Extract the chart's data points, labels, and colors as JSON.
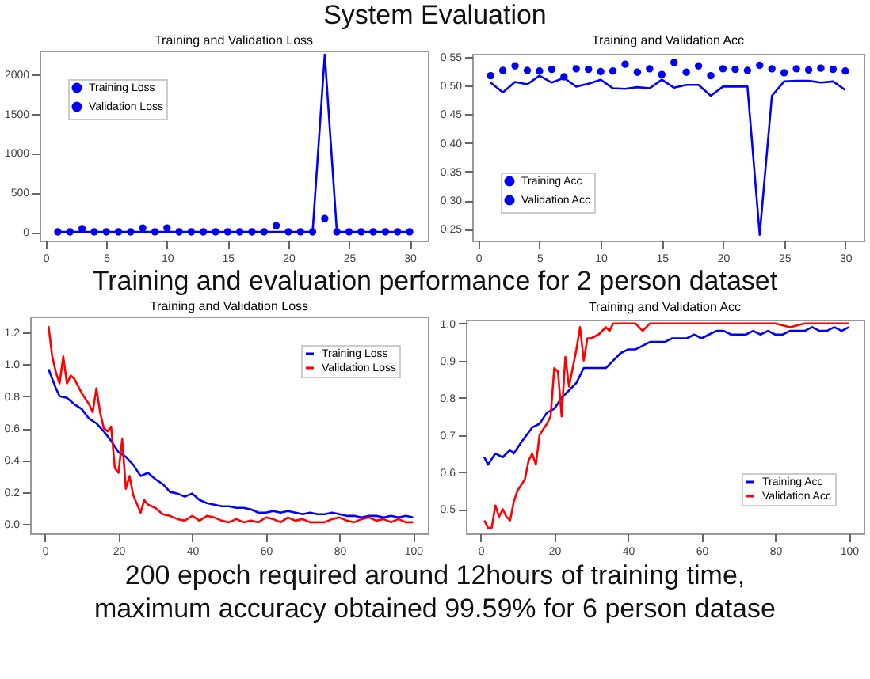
{
  "chart_data": [
    {
      "type": "line",
      "title": "Training and Validation Loss",
      "annotations": [
        "System Evaluation"
      ],
      "legend": "top left",
      "xlim": [
        -0.5,
        31.5
      ],
      "xticks": [
        0,
        5,
        10,
        15,
        20,
        25,
        30
      ],
      "ylim": [
        -110,
        2300
      ],
      "yticks": [
        0,
        500,
        1000,
        1500,
        2000
      ],
      "series": [
        {
          "name": "Training Loss",
          "type": "scatter",
          "marker": "circle",
          "color": "#0000ff",
          "x": [
            1,
            2,
            3,
            4,
            5,
            6,
            7,
            8,
            9,
            10,
            11,
            12,
            13,
            14,
            15,
            16,
            17,
            18,
            19,
            20,
            21,
            22,
            23,
            24,
            25,
            26,
            27,
            28,
            29,
            30
          ],
          "values": [
            0,
            0,
            40,
            0,
            0,
            0,
            0,
            50,
            0,
            50,
            0,
            0,
            0,
            0,
            0,
            0,
            0,
            0,
            80,
            0,
            0,
            0,
            170,
            0,
            0,
            0,
            0,
            0,
            0,
            0
          ]
        },
        {
          "name": "Validation Loss",
          "color": "#0000ff",
          "x": [
            1,
            2,
            3,
            4,
            5,
            6,
            7,
            8,
            9,
            10,
            11,
            12,
            13,
            14,
            15,
            16,
            17,
            18,
            19,
            20,
            21,
            22,
            23,
            24,
            25,
            26,
            27,
            28,
            29,
            30
          ],
          "values": [
            0,
            0,
            0,
            0,
            0,
            0,
            0,
            0,
            0,
            0,
            0,
            0,
            0,
            0,
            0,
            0,
            0,
            0,
            0,
            0,
            0,
            0,
            2250,
            0,
            0,
            0,
            0,
            0,
            0,
            0
          ]
        }
      ]
    },
    {
      "type": "line",
      "title": "Training and Validation Acc",
      "annotations": [
        "Training and evaluation performance for 2 person dataset"
      ],
      "legend": "bottom left",
      "xlim": [
        -0.5,
        31.5
      ],
      "xticks": [
        0,
        5,
        10,
        15,
        20,
        25,
        30
      ],
      "ylim": [
        0.23,
        0.555
      ],
      "yticks": [
        0.25,
        {
          "value": 0.3,
          "label": "0.30"
        },
        0.35,
        {
          "value": 0.4,
          "label": "0.40"
        },
        0.45,
        {
          "value": 0.5,
          "label": "0.50"
        },
        0.55
      ],
      "series": [
        {
          "name": "Training Acc",
          "type": "scatter",
          "marker": "circle",
          "color": "#0000ff",
          "x": [
            1,
            2,
            3,
            4,
            5,
            6,
            7,
            8,
            9,
            10,
            11,
            12,
            13,
            14,
            15,
            16,
            17,
            18,
            19,
            20,
            21,
            22,
            23,
            24,
            25,
            26,
            27,
            28,
            29,
            30
          ],
          "values": [
            0.517,
            0.526,
            0.534,
            0.526,
            0.525,
            0.528,
            0.515,
            0.529,
            0.528,
            0.524,
            0.525,
            0.537,
            0.523,
            0.529,
            0.519,
            0.54,
            0.523,
            0.534,
            0.517,
            0.529,
            0.528,
            0.526,
            0.535,
            0.529,
            0.522,
            0.529,
            0.527,
            0.53,
            0.528,
            0.525
          ]
        },
        {
          "name": "Validation Acc",
          "color": "#0000ff",
          "x": [
            1,
            2,
            3,
            4,
            5,
            6,
            7,
            8,
            9,
            10,
            11,
            12,
            13,
            14,
            15,
            16,
            17,
            18,
            19,
            20,
            21,
            22,
            23,
            24,
            25,
            26,
            27,
            28,
            29,
            30
          ],
          "values": [
            0.505,
            0.488,
            0.506,
            0.502,
            0.517,
            0.505,
            0.513,
            0.498,
            0.503,
            0.51,
            0.495,
            0.494,
            0.497,
            0.495,
            0.51,
            0.496,
            0.501,
            0.501,
            0.482,
            0.498,
            0.498,
            0.498,
            0.24,
            0.482,
            0.507,
            0.508,
            0.508,
            0.505,
            0.507,
            0.492
          ]
        }
      ]
    },
    {
      "type": "line",
      "title": "Training and Validation Loss",
      "legend": "top right",
      "xlim": [
        -4,
        104
      ],
      "xticks": [
        0,
        20,
        40,
        60,
        80,
        100
      ],
      "ylim": [
        -0.06,
        1.3
      ],
      "yticks": [
        {
          "value": 0,
          "label": "0.0"
        },
        0.2,
        0.4,
        0.6,
        0.8,
        {
          "value": 1,
          "label": "1.0"
        },
        1.2
      ],
      "series": [
        {
          "name": "Training Loss",
          "color": "#0000ff",
          "x": [
            1,
            3,
            4,
            6,
            8,
            10,
            12,
            14,
            16,
            18,
            20,
            22,
            24,
            26,
            28,
            30,
            32,
            34,
            36,
            38,
            40,
            42,
            44,
            46,
            48,
            50,
            52,
            54,
            56,
            58,
            60,
            62,
            64,
            66,
            68,
            70,
            72,
            74,
            76,
            78,
            80,
            82,
            84,
            86,
            88,
            90,
            92,
            94,
            96,
            98,
            100
          ],
          "values": [
            0.97,
            0.85,
            0.8,
            0.79,
            0.75,
            0.72,
            0.66,
            0.63,
            0.58,
            0.52,
            0.45,
            0.42,
            0.37,
            0.3,
            0.32,
            0.28,
            0.25,
            0.2,
            0.19,
            0.17,
            0.19,
            0.15,
            0.13,
            0.12,
            0.11,
            0.11,
            0.1,
            0.1,
            0.09,
            0.07,
            0.07,
            0.08,
            0.07,
            0.08,
            0.07,
            0.06,
            0.07,
            0.06,
            0.06,
            0.07,
            0.06,
            0.05,
            0.05,
            0.04,
            0.05,
            0.05,
            0.04,
            0.05,
            0.04,
            0.05,
            0.04
          ]
        },
        {
          "name": "Validation Loss",
          "color": "#ff0000",
          "x": [
            1,
            2,
            3,
            4,
            5,
            6,
            7,
            8,
            10,
            12,
            13,
            14,
            15,
            16,
            17,
            18,
            19,
            20,
            21,
            22,
            23,
            24,
            26,
            27,
            28,
            30,
            32,
            34,
            36,
            38,
            40,
            42,
            44,
            46,
            48,
            50,
            52,
            54,
            56,
            58,
            60,
            62,
            64,
            66,
            68,
            70,
            72,
            74,
            76,
            78,
            80,
            82,
            84,
            86,
            88,
            90,
            92,
            94,
            96,
            98,
            100
          ],
          "values": [
            1.24,
            1.05,
            0.95,
            0.88,
            1.05,
            0.88,
            0.93,
            0.91,
            0.82,
            0.75,
            0.7,
            0.85,
            0.7,
            0.6,
            0.58,
            0.61,
            0.35,
            0.32,
            0.53,
            0.22,
            0.3,
            0.18,
            0.07,
            0.15,
            0.12,
            0.1,
            0.06,
            0.05,
            0.03,
            0.02,
            0.05,
            0.02,
            0.05,
            0.04,
            0.02,
            0.01,
            0.03,
            0.01,
            0.02,
            0.01,
            0.04,
            0.03,
            0.01,
            0.04,
            0.02,
            0.03,
            0.01,
            0.01,
            0.01,
            0.03,
            0.04,
            0.02,
            0.01,
            0.03,
            0.04,
            0.02,
            0.03,
            0.01,
            0.03,
            0.01,
            0.01
          ]
        }
      ]
    },
    {
      "type": "line",
      "title": "Training and Validation Acc",
      "annotations": [
        "200 epoch required around 12hours of training time,",
        "maximum accuracy obtained  99.59% for 6 person datase"
      ],
      "legend": "bottom right",
      "xlim": [
        -4,
        104
      ],
      "xticks": [
        0,
        20,
        40,
        60,
        80,
        100
      ],
      "ylim": [
        0.435,
        1.01
      ],
      "yticks": [
        0.5,
        0.6,
        0.7,
        0.8,
        0.9,
        {
          "value": 1,
          "label": "1.0"
        }
      ],
      "series": [
        {
          "name": "Training Acc",
          "color": "#0000ff",
          "x": [
            1,
            2,
            4,
            6,
            8,
            9,
            11,
            14,
            16,
            18,
            20,
            22,
            24,
            26,
            28,
            30,
            32,
            34,
            36,
            38,
            40,
            42,
            44,
            46,
            48,
            50,
            52,
            54,
            56,
            58,
            60,
            62,
            64,
            66,
            68,
            70,
            72,
            74,
            76,
            78,
            80,
            82,
            84,
            86,
            88,
            90,
            92,
            94,
            96,
            98,
            100
          ],
          "values": [
            0.64,
            0.62,
            0.65,
            0.64,
            0.66,
            0.65,
            0.68,
            0.72,
            0.73,
            0.76,
            0.77,
            0.8,
            0.82,
            0.84,
            0.88,
            0.88,
            0.88,
            0.88,
            0.9,
            0.92,
            0.93,
            0.93,
            0.94,
            0.95,
            0.95,
            0.95,
            0.96,
            0.96,
            0.96,
            0.97,
            0.96,
            0.97,
            0.98,
            0.98,
            0.97,
            0.97,
            0.97,
            0.98,
            0.97,
            0.98,
            0.97,
            0.97,
            0.98,
            0.98,
            0.98,
            0.99,
            0.98,
            0.98,
            0.99,
            0.98,
            0.99
          ]
        },
        {
          "name": "Validation Acc",
          "color": "#ff0000",
          "x": [
            1,
            2,
            3,
            4,
            5,
            6,
            7,
            8,
            9,
            10,
            12,
            13,
            14,
            15,
            16,
            18,
            19,
            20,
            21,
            22,
            23,
            24,
            25,
            26,
            27,
            28,
            29,
            30,
            32,
            34,
            35,
            36,
            38,
            40,
            42,
            44,
            46,
            48,
            50,
            55,
            60,
            65,
            70,
            75,
            80,
            84,
            88,
            92,
            96,
            100
          ],
          "values": [
            0.47,
            0.45,
            0.45,
            0.51,
            0.48,
            0.5,
            0.48,
            0.47,
            0.52,
            0.55,
            0.58,
            0.63,
            0.65,
            0.62,
            0.7,
            0.73,
            0.75,
            0.88,
            0.87,
            0.75,
            0.91,
            0.83,
            0.88,
            0.93,
            0.99,
            0.9,
            0.96,
            0.96,
            0.97,
            0.99,
            0.98,
            1,
            1,
            1,
            1,
            0.98,
            1,
            1,
            1,
            1,
            1,
            1,
            1,
            1,
            1,
            0.99,
            1,
            1,
            1,
            1
          ]
        }
      ]
    }
  ]
}
